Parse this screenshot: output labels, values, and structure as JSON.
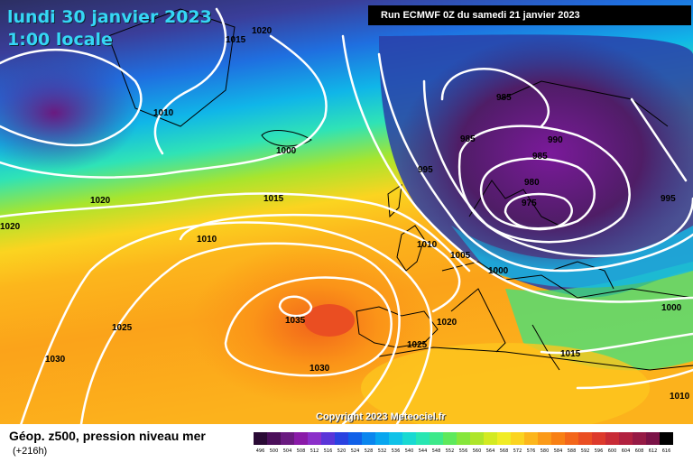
{
  "header": {
    "date": "lundi 30 janvier 2023",
    "time": "1:00 locale",
    "run": "Run ECMWF 0Z du samedi 21 janvier 2023"
  },
  "footer": {
    "title": "Géop. z500, pression niveau mer",
    "lead": "(+216h)",
    "copyright": "Copyright 2023 Meteociel.fr"
  },
  "isobar_labels": [
    "1020",
    "1015",
    "1010",
    "1000",
    "995",
    "985",
    "985",
    "990",
    "985",
    "980",
    "975",
    "995",
    "1020",
    "1015",
    "1010",
    "1010",
    "1005",
    "1000",
    "1000",
    "1025",
    "1035",
    "1030",
    "1020",
    "1025",
    "1030",
    "1015",
    "1010",
    "1020"
  ],
  "scale": {
    "values": [
      "496",
      "500",
      "504",
      "508",
      "512",
      "516",
      "520",
      "524",
      "528",
      "532",
      "536",
      "540",
      "544",
      "548",
      "552",
      "556",
      "560",
      "564",
      "568",
      "572",
      "576",
      "580",
      "584",
      "588",
      "592",
      "596",
      "600",
      "604",
      "608",
      "612",
      "616"
    ],
    "colors": [
      "#2a0a35",
      "#4b0f5a",
      "#6a1a80",
      "#8a1aa8",
      "#8b2fc9",
      "#5a35d8",
      "#2a42e0",
      "#1060e8",
      "#0a86ee",
      "#08a6ef",
      "#10c2e8",
      "#19d9d2",
      "#28e6b2",
      "#3de98a",
      "#5ee95c",
      "#86e63b",
      "#aee52a",
      "#d3ea22",
      "#f1ec25",
      "#fbd420",
      "#fcb61c",
      "#fb9a18",
      "#f88014",
      "#f3661a",
      "#ea4e22",
      "#dd3a2c",
      "#c82b36",
      "#b1213f",
      "#961a45",
      "#7a1246",
      "#000000"
    ]
  }
}
